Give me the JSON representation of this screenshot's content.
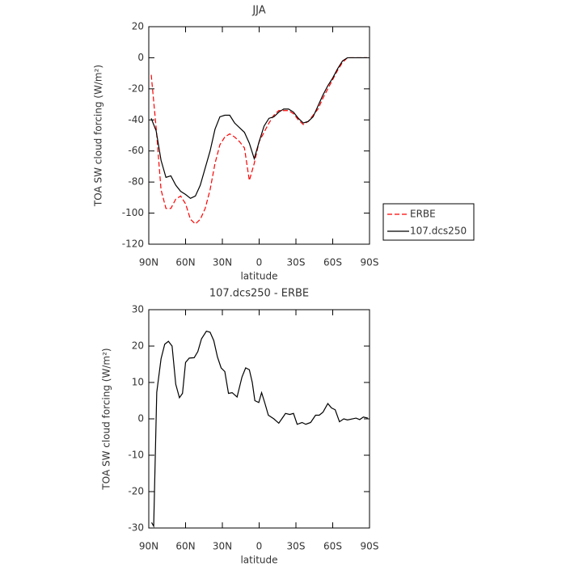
{
  "chart_data": [
    {
      "type": "line",
      "title": "JJA",
      "x_label": "latitude",
      "y_label": "TOA SW cloud forcing (W/m²)",
      "x": [
        88,
        84,
        80,
        76,
        72,
        68,
        64,
        60,
        56,
        52,
        48,
        44,
        40,
        36,
        32,
        28,
        24,
        20,
        16,
        12,
        8,
        4,
        0,
        -4,
        -8,
        -12,
        -16,
        -20,
        -24,
        -28,
        -32,
        -36,
        -40,
        -44,
        -48,
        -52,
        -56,
        -60,
        -64,
        -68,
        -72,
        -76,
        -80,
        -84,
        -88
      ],
      "series": [
        {
          "name": "ERBE",
          "color": "#ff0000",
          "style": "dashed",
          "values": [
            -11,
            -45,
            -85,
            -97,
            -97,
            -91,
            -89,
            -94,
            -104,
            -107,
            -104,
            -97,
            -85,
            -68,
            -56,
            -51,
            -49,
            -51,
            -54,
            -58,
            -79,
            -68,
            -54,
            -48,
            -42,
            -37,
            -34,
            -34,
            -34,
            -36,
            -40,
            -43,
            -41,
            -37,
            -33,
            -26,
            -20,
            -14,
            -8,
            -3,
            0,
            0,
            0,
            0,
            0
          ]
        },
        {
          "name": "107.dcs250",
          "color": "#000000",
          "style": "solid",
          "values": [
            -39,
            -47,
            -66,
            -77,
            -76,
            -82,
            -86,
            -88,
            -90.5,
            -89,
            -82,
            -71,
            -60,
            -46,
            -38,
            -37,
            -37,
            -42,
            -45,
            -48,
            -55,
            -65,
            -54,
            -44,
            -39,
            -38,
            -35,
            -33,
            -33,
            -35,
            -39,
            -42,
            -41,
            -38,
            -31,
            -24,
            -18,
            -13,
            -7,
            -2,
            0,
            0,
            0,
            0,
            0
          ]
        }
      ],
      "xlim": [
        90,
        -90
      ],
      "xticks": [
        {
          "value": 90,
          "label": "90N"
        },
        {
          "value": 60,
          "label": "60N"
        },
        {
          "value": 30,
          "label": "30N"
        },
        0,
        {
          "value": -30,
          "label": "30S"
        },
        {
          "value": -60,
          "label": "60S"
        },
        {
          "value": -90,
          "label": "90S"
        }
      ],
      "ylim": [
        -120,
        20
      ],
      "yticks": [
        -120,
        -100,
        -80,
        -60,
        -40,
        -20,
        0,
        20
      ],
      "legend": "right"
    },
    {
      "type": "line",
      "title": "107.dcs250 - ERBE",
      "x_label": "latitude",
      "y_label": "TOA SW cloud forcing (W/m²)",
      "x": [
        87.7,
        86,
        83.5,
        80,
        77,
        74,
        71,
        68,
        65,
        62.5,
        60,
        57,
        53,
        50,
        47,
        43,
        40,
        37,
        34,
        31,
        28,
        25,
        22,
        18,
        14,
        11,
        8,
        5.6,
        3.5,
        0.3,
        -2,
        -4.5,
        -7.5,
        -12,
        -16,
        -19.5,
        -21.5,
        -25,
        -28,
        -31,
        -35,
        -38,
        -42,
        -46,
        -49,
        -52,
        -56,
        -59,
        -62,
        -65.5,
        -69,
        -72,
        -79,
        -82,
        -85,
        -88.6
      ],
      "series": [
        {
          "name": "107.dcs250 - ERBE",
          "color": "#000000",
          "style": "solid",
          "values": [
            -28.5,
            -29.5,
            7.3,
            16.5,
            20.5,
            21.3,
            20,
            9.5,
            5.8,
            7,
            15.5,
            16.7,
            16.8,
            18.5,
            22,
            24.1,
            23.8,
            21.5,
            17,
            14,
            13,
            7,
            7.2,
            6,
            11.5,
            14,
            13.5,
            10,
            5,
            4.5,
            7.2,
            4.5,
            1,
            0,
            -1.2,
            0.5,
            1.5,
            1.2,
            1.5,
            -1.5,
            -1,
            -1.5,
            -1,
            1,
            1,
            1.8,
            4.2,
            3,
            2.5,
            -0.8,
            0,
            -0.3,
            0.2,
            -0.2,
            0.5,
            0.2
          ]
        }
      ],
      "xlim": [
        90,
        -90
      ],
      "xticks": [
        {
          "value": 90,
          "label": "90N"
        },
        {
          "value": 60,
          "label": "60N"
        },
        {
          "value": 30,
          "label": "30N"
        },
        0,
        {
          "value": -30,
          "label": "30S"
        },
        {
          "value": -60,
          "label": "60S"
        },
        {
          "value": -90,
          "label": "90S"
        }
      ],
      "ylim": [
        -30,
        30
      ],
      "yticks": [
        -30,
        -20,
        -10,
        0,
        10,
        20,
        30
      ]
    }
  ]
}
